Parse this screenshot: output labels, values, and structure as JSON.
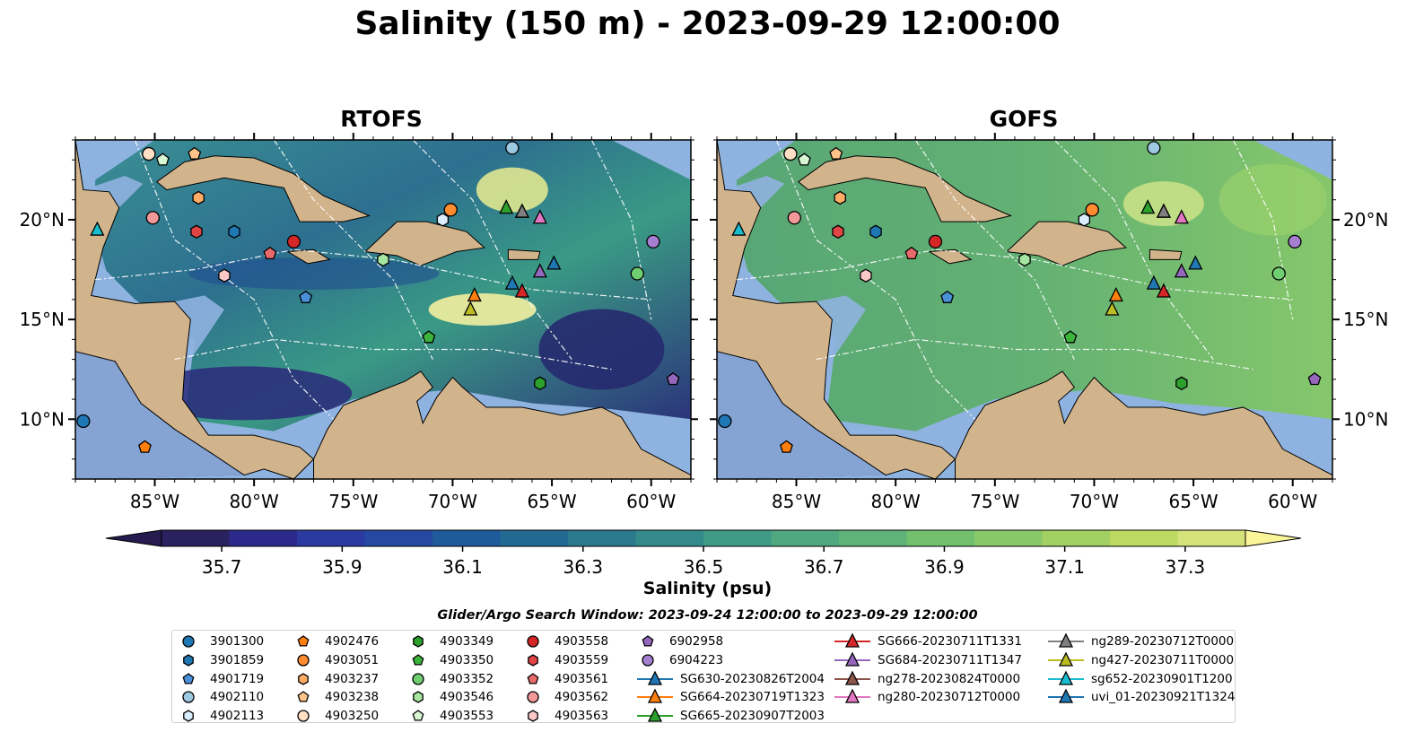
{
  "title": "Salinity (150 m) - 2023-09-29 12:00:00",
  "panels": [
    {
      "name": "RTOFS"
    },
    {
      "name": "GOFS"
    }
  ],
  "axes": {
    "lon_ticks": [
      -85,
      -80,
      -75,
      -70,
      -65,
      -60
    ],
    "lon_tick_labels": [
      "85°W",
      "80°W",
      "75°W",
      "70°W",
      "65°W",
      "60°W"
    ],
    "lat_ticks": [
      10,
      15,
      20
    ],
    "lat_tick_labels": [
      "10°N",
      "15°N",
      "20°N"
    ],
    "lon_range": [
      -89,
      -58
    ],
    "lat_range": [
      7,
      24
    ]
  },
  "colorbar": {
    "label": "Salinity (psu)",
    "range": [
      35.6,
      37.4
    ],
    "ticks": [
      "35.7",
      "35.9",
      "36.1",
      "36.3",
      "36.5",
      "36.7",
      "36.9",
      "37.1",
      "37.3"
    ],
    "extend": "both",
    "colormap": "haline"
  },
  "search_window": "Glider/Argo Search Window: 2023-09-24 12:00:00 to 2023-09-29 12:00:00",
  "legend": [
    {
      "label": "3901300",
      "marker": "circle",
      "color": "#1f77b4"
    },
    {
      "label": "3901859",
      "marker": "hexagon",
      "color": "#1f77b4"
    },
    {
      "label": "4901719",
      "marker": "pentagon",
      "color": "#4a90d9"
    },
    {
      "label": "4902110",
      "marker": "circle",
      "color": "#9ecae1"
    },
    {
      "label": "4902113",
      "marker": "hexagon",
      "color": "#dbeeff"
    },
    {
      "label": "4902476",
      "marker": "pentagon",
      "color": "#ff7f0e"
    },
    {
      "label": "4903051",
      "marker": "circle",
      "color": "#ff8c2e"
    },
    {
      "label": "4903237",
      "marker": "hexagon",
      "color": "#ffad66"
    },
    {
      "label": "4903238",
      "marker": "pentagon",
      "color": "#ffc48a"
    },
    {
      "label": "4903250",
      "marker": "circle",
      "color": "#ffe0c4"
    },
    {
      "label": "4903349",
      "marker": "hexagon",
      "color": "#2ca02c"
    },
    {
      "label": "4903350",
      "marker": "pentagon",
      "color": "#3cb43c"
    },
    {
      "label": "4903352",
      "marker": "circle",
      "color": "#6fce6f"
    },
    {
      "label": "4903546",
      "marker": "hexagon",
      "color": "#a6e6a0"
    },
    {
      "label": "4903553",
      "marker": "pentagon",
      "color": "#d9f7d2"
    },
    {
      "label": "4903558",
      "marker": "circle",
      "color": "#d62728"
    },
    {
      "label": "4903559",
      "marker": "hexagon",
      "color": "#e04545"
    },
    {
      "label": "4903561",
      "marker": "pentagon",
      "color": "#e86a6a"
    },
    {
      "label": "4903562",
      "marker": "circle",
      "color": "#f29a9a"
    },
    {
      "label": "4903563",
      "marker": "hexagon",
      "color": "#fbc8c8"
    },
    {
      "label": "6902958",
      "marker": "pentagon",
      "color": "#9467bd"
    },
    {
      "label": "6904223",
      "marker": "circle",
      "color": "#a77fd1"
    },
    {
      "label": "SG630-20230826T2004",
      "marker": "triangle-line",
      "color": "#1f77b4"
    },
    {
      "label": "SG664-20230719T1323",
      "marker": "triangle-line",
      "color": "#ff7f0e"
    },
    {
      "label": "SG665-20230907T2003",
      "marker": "triangle-line",
      "color": "#2ca02c"
    },
    {
      "label": "SG666-20230711T1331",
      "marker": "triangle-line",
      "color": "#d62728"
    },
    {
      "label": "SG684-20230711T1347",
      "marker": "triangle-line",
      "color": "#9467bd"
    },
    {
      "label": "ng278-20230824T0000",
      "marker": "triangle-line",
      "color": "#8c564b"
    },
    {
      "label": "ng280-20230712T0000",
      "marker": "triangle-line",
      "color": "#e377c2"
    },
    {
      "label": "ng289-20230712T0000",
      "marker": "triangle-line",
      "color": "#7f7f7f"
    },
    {
      "label": "ng427-20230711T0000",
      "marker": "triangle-line",
      "color": "#bcbd22"
    },
    {
      "label": "sg652-20230901T1200",
      "marker": "triangle-line",
      "color": "#17becf"
    },
    {
      "label": "uvi_01-20230921T1324",
      "marker": "triangle-line",
      "color": "#1f77b4"
    }
  ],
  "observations": [
    {
      "id": "3901300",
      "lon": -88.6,
      "lat": 9.9
    },
    {
      "id": "3901859",
      "lon": -81.0,
      "lat": 19.4
    },
    {
      "id": "4901719",
      "lon": -77.4,
      "lat": 16.1
    },
    {
      "id": "4902110",
      "lon": -67.0,
      "lat": 23.6
    },
    {
      "id": "4902113",
      "lon": -70.5,
      "lat": 20.0
    },
    {
      "id": "4902476",
      "lon": -85.5,
      "lat": 8.6
    },
    {
      "id": "4903051",
      "lon": -70.1,
      "lat": 20.5
    },
    {
      "id": "4903237",
      "lon": -82.8,
      "lat": 21.1
    },
    {
      "id": "4903238",
      "lon": -83.0,
      "lat": 23.3
    },
    {
      "id": "4903250",
      "lon": -85.3,
      "lat": 23.3
    },
    {
      "id": "4903349",
      "lon": -65.6,
      "lat": 11.8
    },
    {
      "id": "4903350",
      "lon": -71.2,
      "lat": 14.1
    },
    {
      "id": "4903352",
      "lon": -60.7,
      "lat": 17.3
    },
    {
      "id": "4903546",
      "lon": -73.5,
      "lat": 18.0
    },
    {
      "id": "4903553",
      "lon": -84.6,
      "lat": 23.0
    },
    {
      "id": "4903558",
      "lon": -78.0,
      "lat": 18.9
    },
    {
      "id": "4903559",
      "lon": -82.9,
      "lat": 19.4
    },
    {
      "id": "4903561",
      "lon": -79.2,
      "lat": 18.3
    },
    {
      "id": "4903562",
      "lon": -85.1,
      "lat": 20.1
    },
    {
      "id": "4903563",
      "lon": -81.5,
      "lat": 17.2
    },
    {
      "id": "6902958",
      "lon": -58.9,
      "lat": 12.0
    },
    {
      "id": "6904223",
      "lon": -59.9,
      "lat": 18.9
    },
    {
      "id": "SG630-20230826T2004",
      "lon": -67.0,
      "lat": 16.8
    },
    {
      "id": "SG664-20230719T1323",
      "lon": -68.9,
      "lat": 16.2
    },
    {
      "id": "SG665-20230907T2003",
      "lon": -67.3,
      "lat": 20.6
    },
    {
      "id": "SG666-20230711T1331",
      "lon": -66.5,
      "lat": 16.4
    },
    {
      "id": "SG684-20230711T1347",
      "lon": -65.6,
      "lat": 17.4
    },
    {
      "id": "ng278-20230824T0000",
      "lon": -66.5,
      "lat": 20.4
    },
    {
      "id": "ng280-20230712T0000",
      "lon": -65.6,
      "lat": 20.1
    },
    {
      "id": "ng289-20230712T0000",
      "lon": -66.5,
      "lat": 20.4
    },
    {
      "id": "ng427-20230711T0000",
      "lon": -69.1,
      "lat": 15.5
    },
    {
      "id": "sg652-20230901T1200",
      "lon": -87.9,
      "lat": 19.5
    },
    {
      "id": "uvi_01-20230921T1324",
      "lon": -64.9,
      "lat": 17.8
    }
  ]
}
